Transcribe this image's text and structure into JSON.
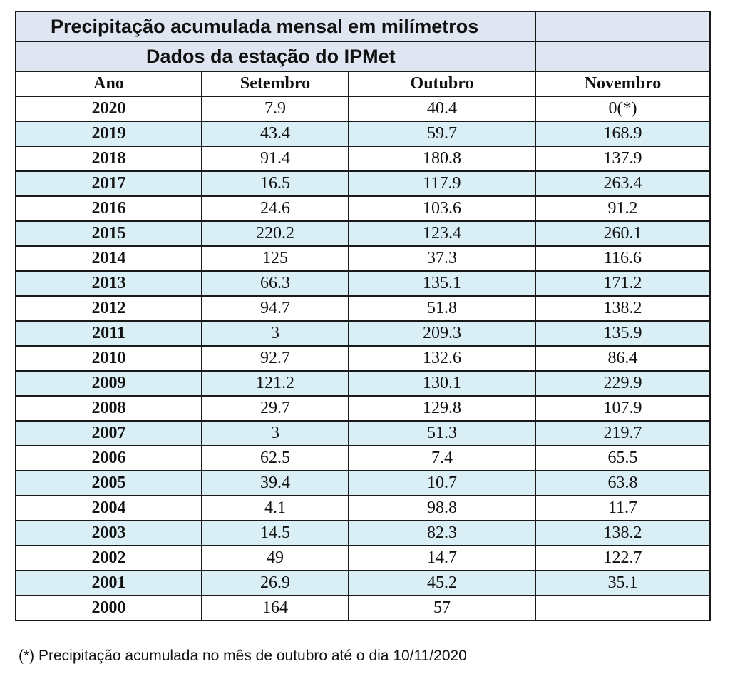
{
  "table": {
    "title": "Precipitação acumulada mensal em milímetros",
    "subtitle": "Dados da estação do IPMet",
    "columns": [
      "Ano",
      "Setembro",
      "Outubro",
      "Novembro"
    ],
    "rows": [
      [
        "2020",
        "7.9",
        "40.4",
        "0(*)"
      ],
      [
        "2019",
        "43.4",
        "59.7",
        "168.9"
      ],
      [
        "2018",
        "91.4",
        "180.8",
        "137.9"
      ],
      [
        "2017",
        "16.5",
        "117.9",
        "263.4"
      ],
      [
        "2016",
        "24.6",
        "103.6",
        "91.2"
      ],
      [
        "2015",
        "220.2",
        "123.4",
        "260.1"
      ],
      [
        "2014",
        "125",
        "37.3",
        "116.6"
      ],
      [
        "2013",
        "66.3",
        "135.1",
        "171.2"
      ],
      [
        "2012",
        "94.7",
        "51.8",
        "138.2"
      ],
      [
        "2011",
        "3",
        "209.3",
        "135.9"
      ],
      [
        "2010",
        "92.7",
        "132.6",
        "86.4"
      ],
      [
        "2009",
        "121.2",
        "130.1",
        "229.9"
      ],
      [
        "2008",
        "29.7",
        "129.8",
        "107.9"
      ],
      [
        "2007",
        "3",
        "51.3",
        "219.7"
      ],
      [
        "2006",
        "62.5",
        "7.4",
        "65.5"
      ],
      [
        "2005",
        "39.4",
        "10.7",
        "63.8"
      ],
      [
        "2004",
        "4.1",
        "98.8",
        "11.7"
      ],
      [
        "2003",
        "14.5",
        "82.3",
        "138.2"
      ],
      [
        "2002",
        "49",
        "14.7",
        "122.7"
      ],
      [
        "2001",
        "26.9",
        "45.2",
        "35.1"
      ],
      [
        "2000",
        "164",
        "57",
        ""
      ]
    ]
  },
  "footnote": "(*) Precipitação acumulada no mês de outubro até o dia 10/11/2020",
  "colors": {
    "title_fill": "#dfe6f1",
    "stripe_fill": "#daeef5",
    "border": "#1a1a1a"
  }
}
